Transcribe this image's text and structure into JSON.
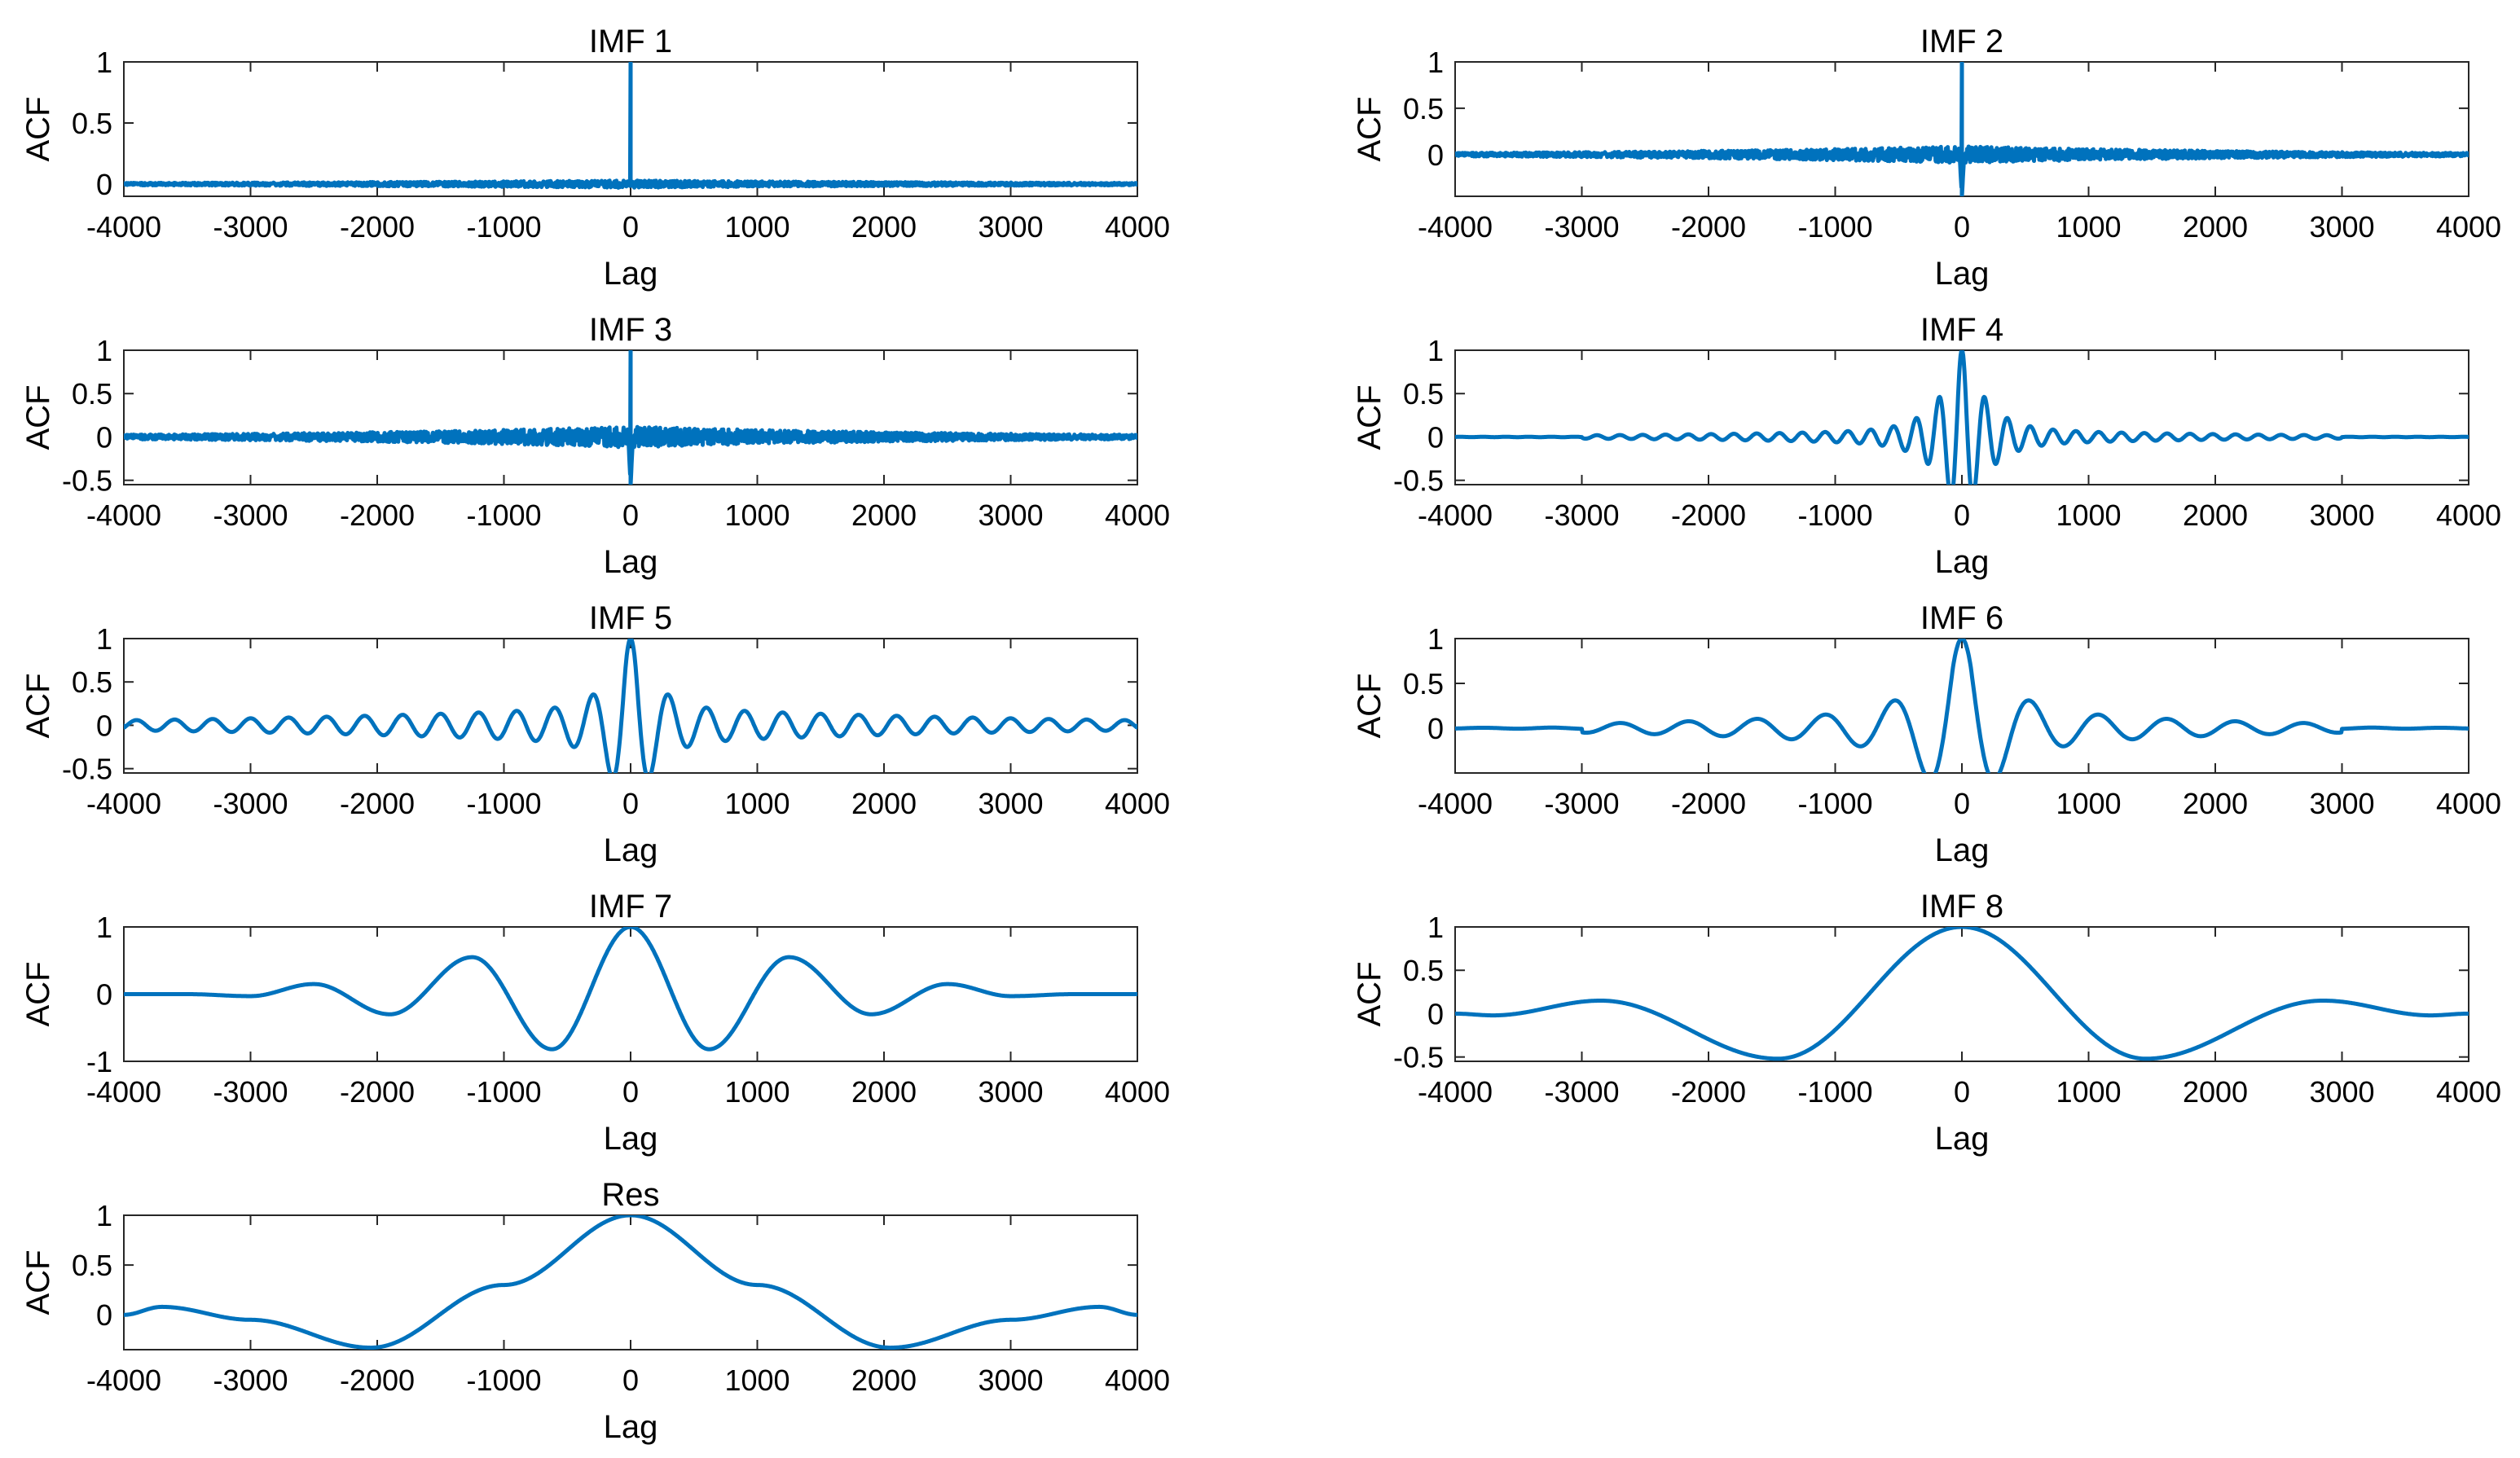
{
  "chart_data": [
    {
      "type": "line",
      "id": "imf1",
      "title": "IMF 1",
      "xlabel": "Lag",
      "ylabel": "ACF",
      "xlim": [
        -4000,
        4000
      ],
      "ylim": [
        -0.1,
        1
      ],
      "xticks": [
        -4000,
        -3000,
        -2000,
        -1000,
        0,
        1000,
        2000,
        3000,
        4000
      ],
      "xtick_labels": [
        "-4000",
        "-3000",
        "-2000",
        "-1000",
        "0",
        "1000",
        "2000",
        "3000",
        "4000"
      ],
      "yticks": [
        0,
        0.5,
        1
      ],
      "ytick_labels": [
        "0",
        "0.5",
        "1"
      ],
      "series": [
        {
          "name": "ACF",
          "color": "#0072BD",
          "shape": "noise",
          "peak_at_zero": 1,
          "noise_amplitude": 0.03,
          "noise_scale_lag": 3500
        }
      ]
    },
    {
      "type": "line",
      "id": "imf2",
      "title": "IMF 2",
      "xlabel": "Lag",
      "ylabel": "ACF",
      "xlim": [
        -4000,
        4000
      ],
      "ylim": [
        -0.45,
        1
      ],
      "xticks": [
        -4000,
        -3000,
        -2000,
        -1000,
        0,
        1000,
        2000,
        3000,
        4000
      ],
      "xtick_labels": [
        "-4000",
        "-3000",
        "-2000",
        "-1000",
        "0",
        "1000",
        "2000",
        "3000",
        "4000"
      ],
      "yticks": [
        0,
        0.5,
        1
      ],
      "ytick_labels": [
        "0",
        "0.5",
        "1"
      ],
      "series": [
        {
          "name": "ACF",
          "color": "#0072BD",
          "shape": "noise",
          "peak_at_zero": 1,
          "noise_amplitude": 0.09,
          "noise_scale_lag": 2500,
          "min_near_zero": -0.45
        }
      ]
    },
    {
      "type": "line",
      "id": "imf3",
      "title": "IMF 3",
      "xlabel": "Lag",
      "ylabel": "ACF",
      "xlim": [
        -4000,
        4000
      ],
      "ylim": [
        -0.55,
        1
      ],
      "xticks": [
        -4000,
        -3000,
        -2000,
        -1000,
        0,
        1000,
        2000,
        3000,
        4000
      ],
      "xtick_labels": [
        "-4000",
        "-3000",
        "-2000",
        "-1000",
        "0",
        "1000",
        "2000",
        "3000",
        "4000"
      ],
      "yticks": [
        -0.5,
        0,
        0.5,
        1
      ],
      "ytick_labels": [
        "-0.5",
        "0",
        "0.5",
        "1"
      ],
      "series": [
        {
          "name": "ACF",
          "color": "#0072BD",
          "shape": "noise",
          "peak_at_zero": 1,
          "noise_amplitude": 0.12,
          "noise_scale_lag": 2600,
          "min_near_zero": -0.55
        }
      ]
    },
    {
      "type": "line",
      "id": "imf4",
      "title": "IMF 4",
      "xlabel": "Lag",
      "ylabel": "ACF",
      "xlim": [
        -4000,
        4000
      ],
      "ylim": [
        -0.55,
        1
      ],
      "xticks": [
        -4000,
        -3000,
        -2000,
        -1000,
        0,
        1000,
        2000,
        3000,
        4000
      ],
      "xtick_labels": [
        "-4000",
        "-3000",
        "-2000",
        "-1000",
        "0",
        "1000",
        "2000",
        "3000",
        "4000"
      ],
      "yticks": [
        -0.5,
        0,
        0.5,
        1
      ],
      "ytick_labels": [
        "-0.5",
        "0",
        "0.5",
        "1"
      ],
      "series": [
        {
          "name": "ACF",
          "color": "#0072BD",
          "shape": "oscillation",
          "period": 180,
          "envelope_scale_lag": 180,
          "tail_amplitude": 0.1,
          "tail_scale_lag": 1800,
          "cutoff_lag": 3000
        }
      ]
    },
    {
      "type": "line",
      "id": "imf5",
      "title": "IMF 5",
      "xlabel": "Lag",
      "ylabel": "ACF",
      "xlim": [
        -4000,
        4000
      ],
      "ylim": [
        -0.55,
        1
      ],
      "xticks": [
        -4000,
        -3000,
        -2000,
        -1000,
        0,
        1000,
        2000,
        3000,
        4000
      ],
      "xtick_labels": [
        "-4000",
        "-3000",
        "-2000",
        "-1000",
        "0",
        "1000",
        "2000",
        "3000",
        "4000"
      ],
      "yticks": [
        -0.5,
        0,
        0.5,
        1
      ],
      "ytick_labels": [
        "-0.5",
        "0",
        "0.5",
        "1"
      ],
      "series": [
        {
          "name": "ACF",
          "color": "#0072BD",
          "shape": "oscillation",
          "period": 300,
          "envelope_scale_lag": 160,
          "tail_amplitude": 0.22,
          "tail_scale_lag": 3000,
          "cutoff_lag": 4000
        }
      ]
    },
    {
      "type": "line",
      "id": "imf6",
      "title": "IMF 6",
      "xlabel": "Lag",
      "ylabel": "ACF",
      "xlim": [
        -4000,
        4000
      ],
      "ylim": [
        -0.5,
        1
      ],
      "xticks": [
        -4000,
        -3000,
        -2000,
        -1000,
        0,
        1000,
        2000,
        3000,
        4000
      ],
      "xtick_labels": [
        "-4000",
        "-3000",
        "-2000",
        "-1000",
        "0",
        "1000",
        "2000",
        "3000",
        "4000"
      ],
      "yticks": [
        0,
        0.5,
        1
      ],
      "ytick_labels": [
        "0",
        "0.5",
        "1"
      ],
      "series": [
        {
          "name": "ACF",
          "color": "#0072BD",
          "shape": "oscillation",
          "period": 540,
          "envelope_scale_lag": 260,
          "tail_amplitude": 0.24,
          "tail_scale_lag": 1900,
          "cutoff_lag": 3000
        }
      ]
    },
    {
      "type": "line",
      "id": "imf7",
      "title": "IMF 7",
      "xlabel": "Lag",
      "ylabel": "ACF",
      "xlim": [
        -4000,
        4000
      ],
      "ylim": [
        -1,
        1
      ],
      "xticks": [
        -4000,
        -3000,
        -2000,
        -1000,
        0,
        1000,
        2000,
        3000,
        4000
      ],
      "xtick_labels": [
        "-4000",
        "-3000",
        "-2000",
        "-1000",
        "0",
        "1000",
        "2000",
        "3000",
        "4000"
      ],
      "yticks": [
        -1,
        0,
        1
      ],
      "ytick_labels": [
        "-1",
        "0",
        "1"
      ],
      "series": [
        {
          "name": "ACF",
          "color": "#0072BD",
          "shape": "points",
          "points": [
            [
              -4000,
              0
            ],
            [
              -3500,
              0
            ],
            [
              -3000,
              -0.03
            ],
            [
              -2500,
              0.15
            ],
            [
              -1900,
              -0.3
            ],
            [
              -1250,
              0.55
            ],
            [
              -620,
              -0.82
            ],
            [
              0,
              1
            ],
            [
              620,
              -0.82
            ],
            [
              1250,
              0.55
            ],
            [
              1900,
              -0.3
            ],
            [
              2500,
              0.15
            ],
            [
              3000,
              -0.03
            ],
            [
              3500,
              0
            ],
            [
              4000,
              0
            ]
          ]
        }
      ]
    },
    {
      "type": "line",
      "id": "imf8",
      "title": "IMF 8",
      "xlabel": "Lag",
      "ylabel": "ACF",
      "xlim": [
        -4000,
        4000
      ],
      "ylim": [
        -0.55,
        1
      ],
      "xticks": [
        -4000,
        -3000,
        -2000,
        -1000,
        0,
        1000,
        2000,
        3000,
        4000
      ],
      "xtick_labels": [
        "-4000",
        "-3000",
        "-2000",
        "-1000",
        "0",
        "1000",
        "2000",
        "3000",
        "4000"
      ],
      "yticks": [
        -0.5,
        0,
        0.5,
        1
      ],
      "ytick_labels": [
        "-0.5",
        "0",
        "0.5",
        "1"
      ],
      "series": [
        {
          "name": "ACF",
          "color": "#0072BD",
          "shape": "points",
          "points": [
            [
              -4000,
              0
            ],
            [
              -3700,
              -0.02
            ],
            [
              -2850,
              0.15
            ],
            [
              -1450,
              -0.52
            ],
            [
              0,
              1
            ],
            [
              1450,
              -0.52
            ],
            [
              2850,
              0.15
            ],
            [
              3700,
              -0.02
            ],
            [
              4000,
              0
            ]
          ]
        }
      ]
    },
    {
      "type": "line",
      "id": "res",
      "title": "Res",
      "xlabel": "Lag",
      "ylabel": "ACF",
      "xlim": [
        -4000,
        4000
      ],
      "ylim": [
        -0.35,
        1
      ],
      "xticks": [
        -4000,
        -3000,
        -2000,
        -1000,
        0,
        1000,
        2000,
        3000,
        4000
      ],
      "xtick_labels": [
        "-4000",
        "-3000",
        "-2000",
        "-1000",
        "0",
        "1000",
        "2000",
        "3000",
        "4000"
      ],
      "yticks": [
        0,
        0.5,
        1
      ],
      "ytick_labels": [
        "0",
        "0.5",
        "1"
      ],
      "series": [
        {
          "name": "ACF",
          "color": "#0072BD",
          "shape": "points",
          "points": [
            [
              -4000,
              0
            ],
            [
              -3700,
              0.08
            ],
            [
              -3000,
              -0.05
            ],
            [
              -2050,
              -0.33
            ],
            [
              -1000,
              0.3
            ],
            [
              0,
              1
            ],
            [
              1000,
              0.3
            ],
            [
              2050,
              -0.33
            ],
            [
              3000,
              -0.05
            ],
            [
              3700,
              0.08
            ],
            [
              4000,
              0
            ]
          ]
        }
      ]
    }
  ]
}
